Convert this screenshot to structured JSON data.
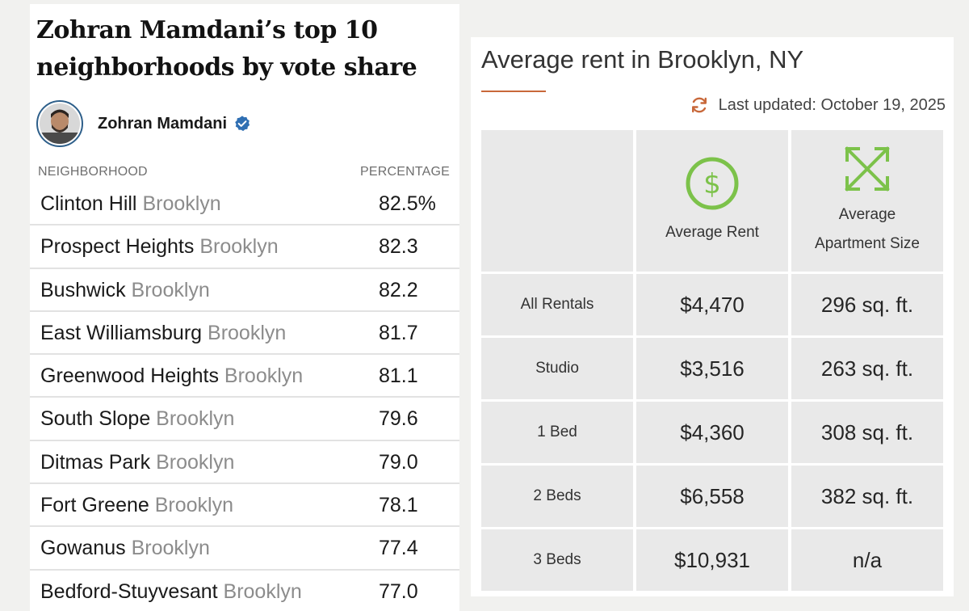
{
  "left": {
    "title_line1": "Zohran Mamdani’s top 10",
    "title_line2": "neighborhoods by vote share",
    "author": "Zohran Mamdani",
    "col_neighborhood": "NEIGHBORHOOD",
    "col_percentage": "PERCENTAGE",
    "rows": [
      {
        "name": "Clinton Hill",
        "borough": "Brooklyn",
        "pct": "82.5%"
      },
      {
        "name": "Prospect Heights",
        "borough": "Brooklyn",
        "pct": "82.3"
      },
      {
        "name": "Bushwick",
        "borough": "Brooklyn",
        "pct": "82.2"
      },
      {
        "name": "East Williamsburg",
        "borough": "Brooklyn",
        "pct": "81.7"
      },
      {
        "name": "Greenwood Heights",
        "borough": "Brooklyn",
        "pct": "81.1"
      },
      {
        "name": "South Slope",
        "borough": "Brooklyn",
        "pct": "79.6"
      },
      {
        "name": "Ditmas Park",
        "borough": "Brooklyn",
        "pct": "79.0"
      },
      {
        "name": "Fort Greene",
        "borough": "Brooklyn",
        "pct": "78.1"
      },
      {
        "name": "Gowanus",
        "borough": "Brooklyn",
        "pct": "77.4"
      },
      {
        "name": "Bedford-Stuyvesant",
        "borough": "Brooklyn",
        "pct": "77.0"
      }
    ]
  },
  "right": {
    "title": "Average rent in Brooklyn, NY",
    "updated": "Last updated: October 19, 2025",
    "header_rent": "Average Rent",
    "header_size_line1": "Average",
    "header_size_line2": "Apartment Size",
    "rows": [
      {
        "label": "All Rentals",
        "rent": "$4,470",
        "size": "296 sq. ft."
      },
      {
        "label": "Studio",
        "rent": "$3,516",
        "size": "263 sq. ft."
      },
      {
        "label": "1 Bed",
        "rent": "$4,360",
        "size": "308 sq. ft."
      },
      {
        "label": "2 Beds",
        "rent": "$6,558",
        "size": "382 sq. ft."
      },
      {
        "label": "3 Beds",
        "rent": "$10,931",
        "size": "n/a"
      }
    ]
  },
  "colors": {
    "accent_orange": "#c8683a",
    "dollar_green": "#7cc24a",
    "verified_blue": "#2f6fb3"
  },
  "icons": [
    "user-avatar",
    "verified-badge-icon",
    "refresh-icon",
    "dollar-circle-icon",
    "expand-arrows-icon"
  ]
}
